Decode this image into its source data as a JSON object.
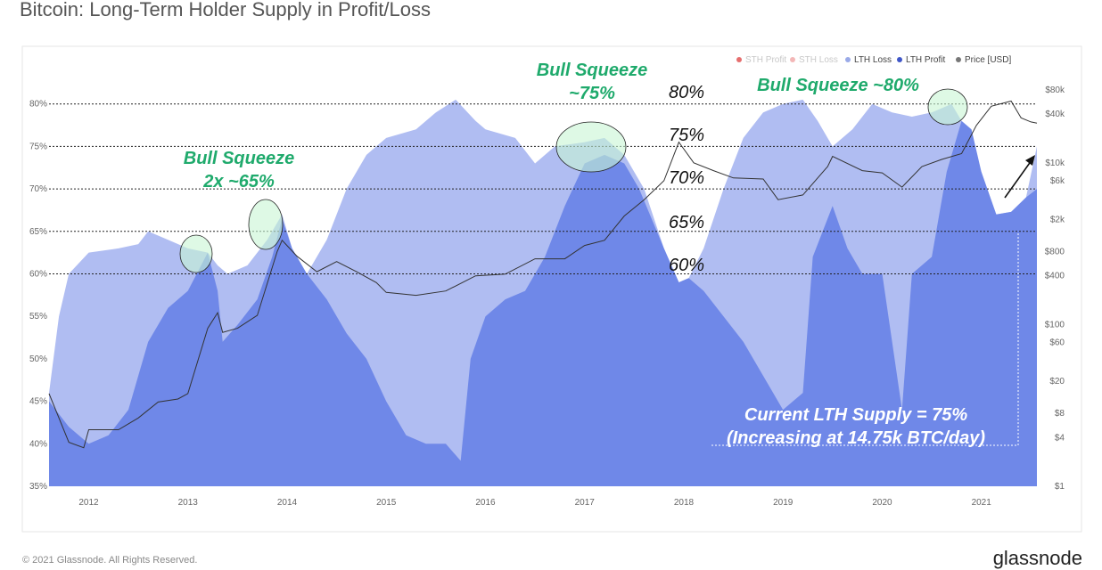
{
  "title": "Bitcoin: Long-Term Holder Supply in Profit/Loss",
  "footer": {
    "copyright": "© 2021 Glassnode. All Rights Reserved.",
    "brand": "glassnode"
  },
  "watermark": "glassnode",
  "colors": {
    "lth_loss": "#b0bdf2",
    "lth_profit": "#6f88e8",
    "price": "#333333",
    "annotation_green": "#1faa6c"
  },
  "chart_data": {
    "type": "area",
    "title": "Bitcoin: Long-Term Holder Supply in Profit/Loss",
    "xlim": [
      2011.6,
      2021.56
    ],
    "ylim": [
      35,
      82
    ],
    "x_ticks": [
      "2012",
      "2013",
      "2014",
      "2015",
      "2016",
      "2017",
      "2018",
      "2019",
      "2020",
      "2021"
    ],
    "y_ticks": [
      "35%",
      "40%",
      "45%",
      "50%",
      "55%",
      "60%",
      "65%",
      "70%",
      "75%",
      "80%"
    ],
    "y2_ticks": [
      "$1",
      "$4",
      "$8",
      "$20",
      "$60",
      "$100",
      "$400",
      "$800",
      "$2k",
      "$6k",
      "$10k",
      "$40k",
      "$80k"
    ],
    "y2_scale": "log",
    "legend": [
      {
        "name": "STH Profit",
        "color": "#e04a4a",
        "faded": true
      },
      {
        "name": "STH Loss",
        "color": "#f0a5a5",
        "faded": true
      },
      {
        "name": "LTH Loss",
        "color": "#9aaae8",
        "faded": false
      },
      {
        "name": "LTH Profit",
        "color": "#3f56c8",
        "faded": false
      },
      {
        "name": "Price [USD]",
        "color": "#777777",
        "faded": false
      }
    ],
    "legend_position": "top-right",
    "series": [
      {
        "name": "LTH Supply (Profit + Loss) %",
        "points": [
          [
            2011.6,
            46
          ],
          [
            2011.7,
            55
          ],
          [
            2011.8,
            60
          ],
          [
            2012.0,
            62.5
          ],
          [
            2012.3,
            63
          ],
          [
            2012.5,
            63.5
          ],
          [
            2012.6,
            65
          ],
          [
            2012.8,
            64
          ],
          [
            2013.0,
            63
          ],
          [
            2013.2,
            62.5
          ],
          [
            2013.3,
            61
          ],
          [
            2013.4,
            60
          ],
          [
            2013.6,
            61
          ],
          [
            2013.8,
            64
          ],
          [
            2013.95,
            67
          ],
          [
            2014.05,
            63
          ],
          [
            2014.2,
            60
          ],
          [
            2014.4,
            64
          ],
          [
            2014.6,
            70
          ],
          [
            2014.8,
            74
          ],
          [
            2015.0,
            76
          ],
          [
            2015.3,
            77
          ],
          [
            2015.5,
            79
          ],
          [
            2015.7,
            80.5
          ],
          [
            2015.9,
            78
          ],
          [
            2016.0,
            77
          ],
          [
            2016.3,
            76
          ],
          [
            2016.5,
            73
          ],
          [
            2016.7,
            75
          ],
          [
            2017.0,
            75.5
          ],
          [
            2017.2,
            76
          ],
          [
            2017.4,
            74
          ],
          [
            2017.6,
            70
          ],
          [
            2017.8,
            63
          ],
          [
            2017.95,
            59
          ],
          [
            2018.05,
            59.5
          ],
          [
            2018.2,
            63
          ],
          [
            2018.4,
            70
          ],
          [
            2018.6,
            76
          ],
          [
            2018.8,
            79
          ],
          [
            2019.0,
            80
          ],
          [
            2019.2,
            80.5
          ],
          [
            2019.35,
            78
          ],
          [
            2019.5,
            75
          ],
          [
            2019.7,
            77
          ],
          [
            2019.9,
            80
          ],
          [
            2020.1,
            79
          ],
          [
            2020.3,
            78.5
          ],
          [
            2020.5,
            79
          ],
          [
            2020.7,
            80
          ],
          [
            2020.85,
            77
          ],
          [
            2021.0,
            72
          ],
          [
            2021.15,
            67
          ],
          [
            2021.3,
            67.3
          ],
          [
            2021.45,
            69
          ],
          [
            2021.56,
            75
          ]
        ]
      },
      {
        "name": "LTH Profit %",
        "points": [
          [
            2011.6,
            45
          ],
          [
            2011.8,
            42
          ],
          [
            2012.0,
            40
          ],
          [
            2012.2,
            41
          ],
          [
            2012.4,
            44
          ],
          [
            2012.6,
            52
          ],
          [
            2012.8,
            56
          ],
          [
            2013.0,
            58
          ],
          [
            2013.2,
            62.5
          ],
          [
            2013.3,
            58
          ],
          [
            2013.35,
            52
          ],
          [
            2013.5,
            54
          ],
          [
            2013.7,
            57
          ],
          [
            2013.85,
            62
          ],
          [
            2013.95,
            66.5
          ],
          [
            2014.05,
            63
          ],
          [
            2014.2,
            60
          ],
          [
            2014.4,
            57
          ],
          [
            2014.6,
            53
          ],
          [
            2014.8,
            50
          ],
          [
            2015.0,
            45
          ],
          [
            2015.2,
            41
          ],
          [
            2015.4,
            40
          ],
          [
            2015.6,
            40
          ],
          [
            2015.75,
            38
          ],
          [
            2015.85,
            50
          ],
          [
            2016.0,
            55
          ],
          [
            2016.2,
            57
          ],
          [
            2016.4,
            58
          ],
          [
            2016.6,
            62
          ],
          [
            2016.8,
            68
          ],
          [
            2017.0,
            73
          ],
          [
            2017.2,
            74
          ],
          [
            2017.4,
            73
          ],
          [
            2017.55,
            70
          ],
          [
            2017.8,
            63
          ],
          [
            2017.95,
            59
          ],
          [
            2018.05,
            59.5
          ],
          [
            2018.2,
            58
          ],
          [
            2018.4,
            55
          ],
          [
            2018.6,
            52
          ],
          [
            2018.8,
            48
          ],
          [
            2019.0,
            44
          ],
          [
            2019.2,
            46
          ],
          [
            2019.3,
            62
          ],
          [
            2019.5,
            68
          ],
          [
            2019.65,
            63
          ],
          [
            2019.8,
            60
          ],
          [
            2020.0,
            60
          ],
          [
            2020.2,
            44
          ],
          [
            2020.3,
            60
          ],
          [
            2020.5,
            62
          ],
          [
            2020.65,
            72
          ],
          [
            2020.8,
            78
          ],
          [
            2020.9,
            77
          ],
          [
            2021.0,
            72
          ],
          [
            2021.15,
            67
          ],
          [
            2021.3,
            67.3
          ],
          [
            2021.45,
            69
          ],
          [
            2021.56,
            70
          ]
        ]
      },
      {
        "name": "Price [USD]",
        "axis": "right",
        "points": [
          [
            2011.6,
            14
          ],
          [
            2011.8,
            3.5
          ],
          [
            2011.95,
            3
          ],
          [
            2012.0,
            5
          ],
          [
            2012.3,
            5
          ],
          [
            2012.5,
            7
          ],
          [
            2012.7,
            11
          ],
          [
            2012.9,
            12
          ],
          [
            2013.0,
            14
          ],
          [
            2013.2,
            90
          ],
          [
            2013.3,
            140
          ],
          [
            2013.35,
            80
          ],
          [
            2013.5,
            90
          ],
          [
            2013.7,
            130
          ],
          [
            2013.9,
            800
          ],
          [
            2013.95,
            1100
          ],
          [
            2014.1,
            700
          ],
          [
            2014.3,
            450
          ],
          [
            2014.5,
            600
          ],
          [
            2014.7,
            450
          ],
          [
            2014.9,
            330
          ],
          [
            2015.0,
            250
          ],
          [
            2015.3,
            230
          ],
          [
            2015.6,
            260
          ],
          [
            2015.9,
            400
          ],
          [
            2016.2,
            420
          ],
          [
            2016.5,
            650
          ],
          [
            2016.8,
            650
          ],
          [
            2017.0,
            950
          ],
          [
            2017.2,
            1100
          ],
          [
            2017.4,
            2200
          ],
          [
            2017.6,
            3500
          ],
          [
            2017.8,
            6000
          ],
          [
            2017.95,
            18000
          ],
          [
            2018.1,
            10000
          ],
          [
            2018.3,
            8000
          ],
          [
            2018.5,
            6500
          ],
          [
            2018.8,
            6300
          ],
          [
            2018.95,
            3500
          ],
          [
            2019.2,
            4000
          ],
          [
            2019.45,
            9000
          ],
          [
            2019.5,
            12000
          ],
          [
            2019.8,
            8000
          ],
          [
            2020.0,
            7500
          ],
          [
            2020.2,
            5000
          ],
          [
            2020.4,
            9000
          ],
          [
            2020.6,
            11000
          ],
          [
            2020.8,
            13000
          ],
          [
            2020.95,
            29000
          ],
          [
            2021.1,
            50000
          ],
          [
            2021.3,
            58000
          ],
          [
            2021.4,
            36000
          ],
          [
            2021.5,
            32000
          ],
          [
            2021.56,
            31000
          ]
        ]
      }
    ],
    "annotations": {
      "squeeze_65_line1": "Bull Squeeze",
      "squeeze_65_line2": "2x ~65%",
      "squeeze_75_line1": "Bull Squeeze",
      "squeeze_75_line2": "~75%",
      "squeeze_80": "Bull Squeeze ~80%",
      "levels": [
        "80%",
        "75%",
        "70%",
        "65%",
        "60%"
      ],
      "current_line1": "Current LTH Supply = 75%",
      "current_line2": "(Increasing at 14.75k BTC/day)"
    }
  }
}
